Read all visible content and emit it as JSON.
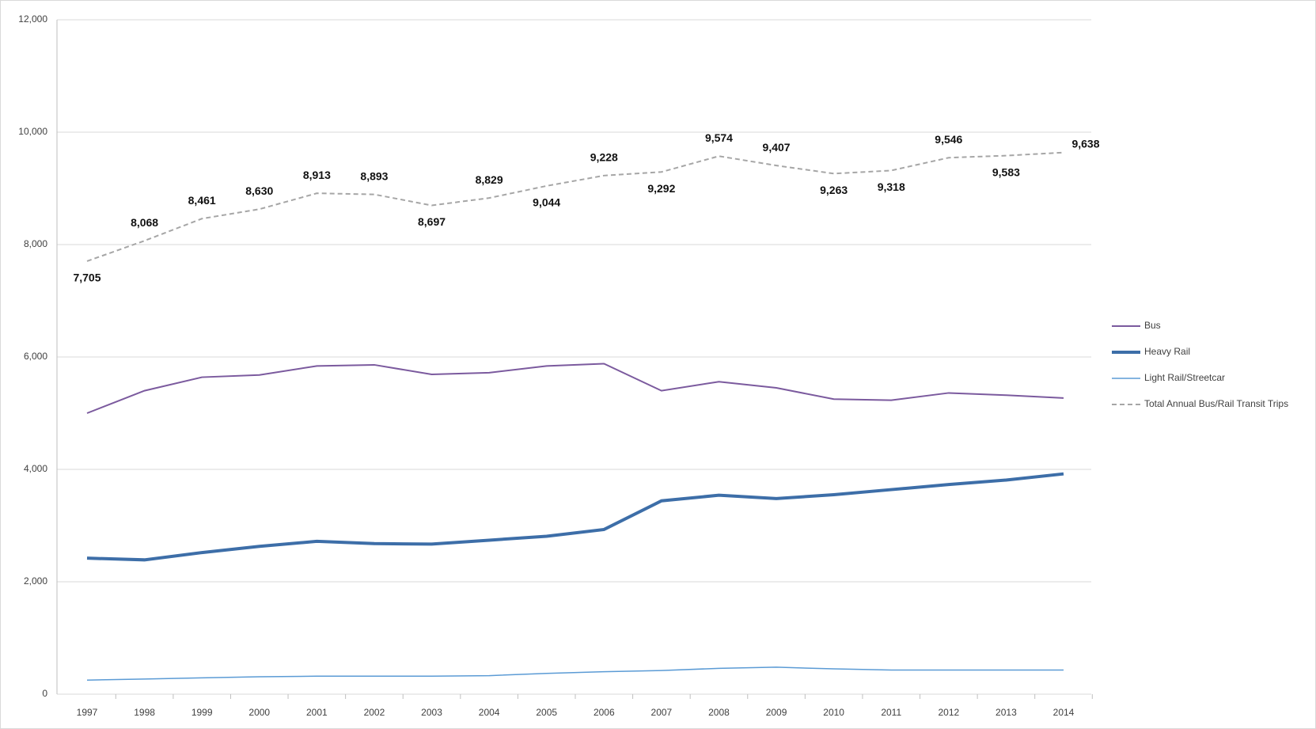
{
  "chart_data": {
    "type": "line",
    "categories": [
      "1997",
      "1998",
      "1999",
      "2000",
      "2001",
      "2002",
      "2003",
      "2004",
      "2005",
      "2006",
      "2007",
      "2008",
      "2009",
      "2010",
      "2011",
      "2012",
      "2013",
      "2014"
    ],
    "series": [
      {
        "name": "Bus",
        "color": "#7b5a9e",
        "values": [
          5000,
          5400,
          5640,
          5680,
          5840,
          5860,
          5690,
          5720,
          5840,
          5880,
          5400,
          5560,
          5450,
          5250,
          5230,
          5360,
          5320,
          5270
        ]
      },
      {
        "name": "Heavy Rail",
        "color": "#3d6ea8",
        "values": [
          2420,
          2390,
          2520,
          2630,
          2720,
          2680,
          2670,
          2740,
          2810,
          2930,
          3440,
          3540,
          3480,
          3550,
          3640,
          3730,
          3810,
          3920
        ]
      },
      {
        "name": "Light Rail/Streetcar",
        "color": "#5b9bd5",
        "values": [
          250,
          270,
          290,
          310,
          320,
          320,
          320,
          330,
          370,
          400,
          420,
          460,
          480,
          450,
          430,
          430,
          430,
          430
        ]
      },
      {
        "name": "Total Annual Bus/Rail Transit Trips",
        "color": "#a6a6a6",
        "dashed": true,
        "values": [
          7705,
          8068,
          8461,
          8630,
          8913,
          8893,
          8697,
          8829,
          9044,
          9228,
          9292,
          9574,
          9407,
          9263,
          9318,
          9546,
          9583,
          9638
        ],
        "value_labels": [
          "7,705",
          "8,068",
          "8,461",
          "8,630",
          "8,913",
          "8,893",
          "8,697",
          "8,829",
          "9,044",
          "9,228",
          "9,292",
          "9,574",
          "9,407",
          "9,263",
          "9,318",
          "9,546",
          "9,583",
          "9,638"
        ]
      }
    ],
    "ylim": [
      0,
      12000
    ],
    "yticks": [
      0,
      {
        "value": 2000,
        "label": "2,000"
      },
      {
        "value": 4000,
        "label": "4,000"
      },
      {
        "value": 6000,
        "label": "6,000"
      },
      {
        "value": 8000,
        "label": "8,000"
      },
      {
        "value": 10000,
        "label": "10,000"
      },
      {
        "value": 12000,
        "label": "12,000"
      }
    ],
    "grid": true,
    "legend": "right"
  }
}
